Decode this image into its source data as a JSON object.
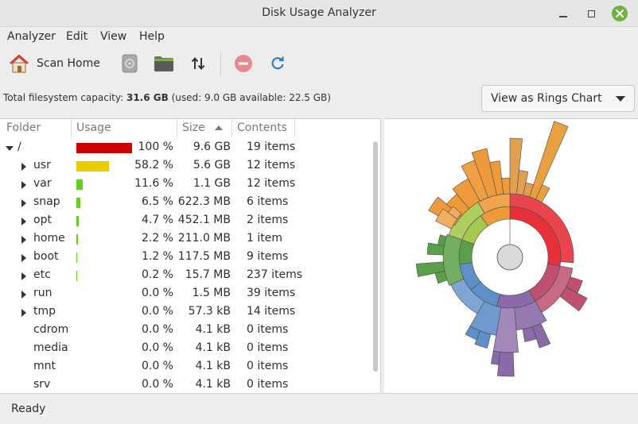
{
  "window": {
    "title": "Disk Usage Analyzer"
  },
  "menu": [
    "Analyzer",
    "Edit",
    "View",
    "Help"
  ],
  "toolbar": {
    "scan_home_label": "Scan Home"
  },
  "capacity": {
    "prefix": "Total filesystem capacity: ",
    "total": "31.6 GB",
    "detail": " (used: 9.0 GB available: 22.5 GB)"
  },
  "view_select": {
    "selected": "View as Rings Chart"
  },
  "columns": {
    "folder": "Folder",
    "usage": "Usage",
    "size": "Size",
    "contents": "Contents"
  },
  "rows": [
    {
      "name": "/",
      "percent": "100 %",
      "usage_fraction": 1.0,
      "bar_color": "#cc0000",
      "size": "9.6 GB",
      "contents": "19 items",
      "expander": "open",
      "depth": 0
    },
    {
      "name": "usr",
      "percent": "58.2 %",
      "usage_fraction": 0.582,
      "bar_color": "#e8cc00",
      "size": "5.6 GB",
      "contents": "12 items",
      "expander": "closed",
      "depth": 1
    },
    {
      "name": "var",
      "percent": "11.6 %",
      "usage_fraction": 0.116,
      "bar_color": "#66cc22",
      "size": "1.1 GB",
      "contents": "12 items",
      "expander": "closed",
      "depth": 1
    },
    {
      "name": "snap",
      "percent": "6.5 %",
      "usage_fraction": 0.065,
      "bar_color": "#66cc22",
      "size": "622.3 MB",
      "contents": "6 items",
      "expander": "closed",
      "depth": 1
    },
    {
      "name": "opt",
      "percent": "4.7 %",
      "usage_fraction": 0.047,
      "bar_color": "#66cc22",
      "size": "452.1 MB",
      "contents": "2 items",
      "expander": "closed",
      "depth": 1
    },
    {
      "name": "home",
      "percent": "2.2 %",
      "usage_fraction": 0.022,
      "bar_color": "#66cc22",
      "size": "211.0 MB",
      "contents": "1 item",
      "expander": "closed",
      "depth": 1
    },
    {
      "name": "boot",
      "percent": "1.2 %",
      "usage_fraction": 0.012,
      "bar_color": "#66cc22",
      "size": "117.5 MB",
      "contents": "9 items",
      "expander": "closed",
      "depth": 1
    },
    {
      "name": "etc",
      "percent": "0.2 %",
      "usage_fraction": 0.002,
      "bar_color": "#66cc22",
      "size": "15.7 MB",
      "contents": "237 items",
      "expander": "closed",
      "depth": 1
    },
    {
      "name": "run",
      "percent": "0.0 %",
      "usage_fraction": 0.0,
      "bar_color": "#66cc22",
      "size": "1.5 MB",
      "contents": "39 items",
      "expander": "closed",
      "depth": 1
    },
    {
      "name": "tmp",
      "percent": "0.0 %",
      "usage_fraction": 0.0,
      "bar_color": "#66cc22",
      "size": "57.3 kB",
      "contents": "14 items",
      "expander": "closed",
      "depth": 1
    },
    {
      "name": "cdrom",
      "percent": "0.0 %",
      "usage_fraction": 0.0,
      "bar_color": "#66cc22",
      "size": "4.1 kB",
      "contents": "0 items",
      "expander": "none",
      "depth": 1
    },
    {
      "name": "media",
      "percent": "0.0 %",
      "usage_fraction": 0.0,
      "bar_color": "#66cc22",
      "size": "4.1 kB",
      "contents": "0 items",
      "expander": "none",
      "depth": 1
    },
    {
      "name": "mnt",
      "percent": "0.0 %",
      "usage_fraction": 0.0,
      "bar_color": "#66cc22",
      "size": "4.1 kB",
      "contents": "0 items",
      "expander": "none",
      "depth": 1
    },
    {
      "name": "srv",
      "percent": "0.0 %",
      "usage_fraction": 0.0,
      "bar_color": "#66cc22",
      "size": "4.1 kB",
      "contents": "0 items",
      "expander": "none",
      "depth": 1
    }
  ],
  "ring_colors": {
    "root": "#e8303a",
    "usr": "#ee9a3a",
    "var": "#a6c84e",
    "snap": "#5aa04a",
    "opt": "#5f8fc8",
    "home": "#8a6aa8",
    "other": "#c05070"
  },
  "status": {
    "text": "Ready"
  },
  "icons": {
    "home": "home-icon",
    "disk": "disk-icon",
    "folder": "folder-icon",
    "sort": "sort-arrows-icon",
    "stop": "stop-icon",
    "refresh": "refresh-icon"
  }
}
